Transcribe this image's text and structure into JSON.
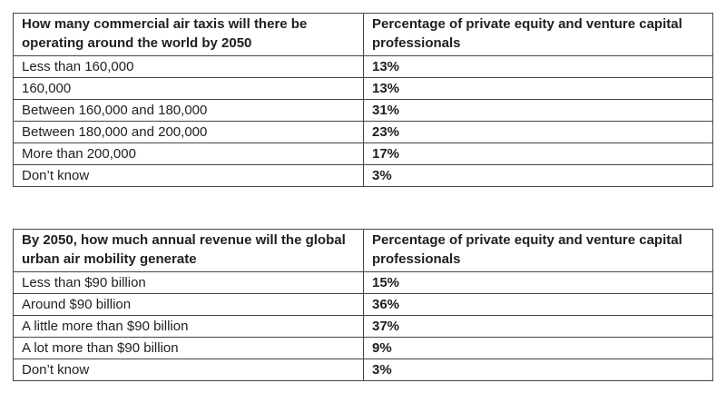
{
  "document": {
    "tables": [
      {
        "header": [
          "How many commercial air taxis will there be operating around the world by 2050",
          "Percentage of private equity and venture capital professionals"
        ],
        "rows": [
          [
            "Less than 160,000",
            "13%"
          ],
          [
            "160,000",
            "13%"
          ],
          [
            "Between 160,000 and 180,000",
            "31%"
          ],
          [
            "Between 180,000 and 200,000",
            "23%"
          ],
          [
            "More than 200,000",
            "17%"
          ],
          [
            "Don’t know",
            "3%"
          ]
        ]
      },
      {
        "header": [
          "By 2050, how much annual revenue will the global urban air mobility generate",
          "Percentage of private equity and venture capital professionals"
        ],
        "rows": [
          [
            "Less than $90 billion",
            "15%"
          ],
          [
            "Around $90 billion",
            "36%"
          ],
          [
            "A little more than $90 billion",
            "37%"
          ],
          [
            "A lot more than $90 billion",
            "9%"
          ],
          [
            "Don’t know",
            "3%"
          ]
        ]
      }
    ],
    "colors": {
      "background": "#ffffff",
      "text": "#1f1f1f",
      "border": "#454545"
    }
  }
}
